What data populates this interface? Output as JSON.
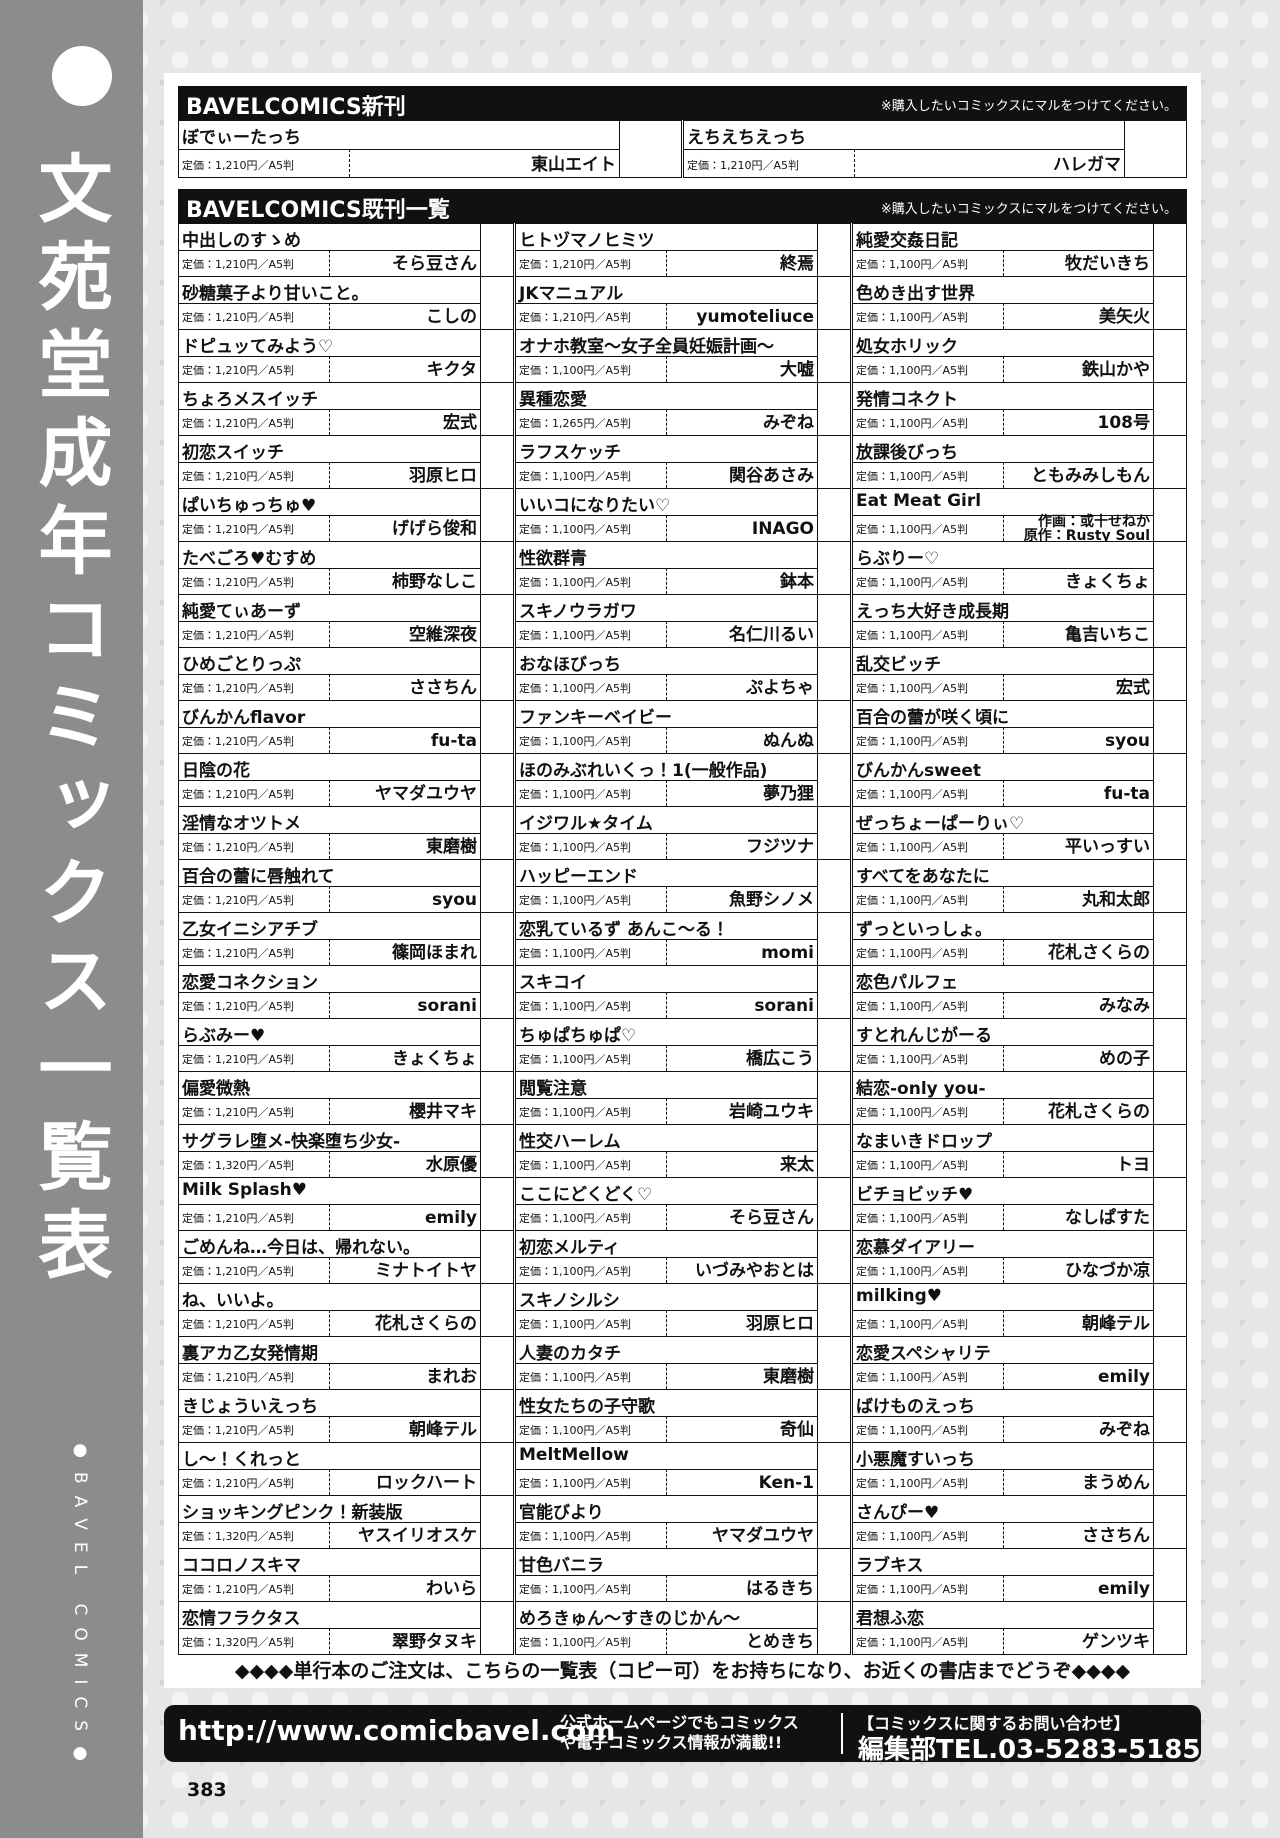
{
  "sidebar": {
    "title": "文苑堂成年コミックス一覧表",
    "subtitle": "●BAVEL COMICS●"
  },
  "new_releases": {
    "title": "BAVELCOMICS新刊",
    "note": "※購入したいコミックスにマルをつけてください。",
    "items": [
      {
        "title": "ぼでぃーたっち",
        "price": "定価：1,210円／A5判",
        "author": "東山エイト"
      },
      {
        "title": "えちえちえっち",
        "price": "定価：1,210円／A5判",
        "author": "ハレガマ"
      }
    ]
  },
  "backlist": {
    "title": "BAVELCOMICS既刊一覧",
    "note": "※購入したいコミックスにマルをつけてください。",
    "columns": [
      {
        "items": [
          {
            "title": "中出しのすゝめ",
            "price": "定価：1,210円／A5判",
            "author": "そら豆さん"
          },
          {
            "title": "砂糖菓子より甘いこと。",
            "price": "定価：1,210円／A5判",
            "author": "こしの"
          },
          {
            "title": "ドピュッてみよう♡",
            "price": "定価：1,210円／A5判",
            "author": "キクタ"
          },
          {
            "title": "ちょろメスイッチ",
            "price": "定価：1,210円／A5判",
            "author": "宏式"
          },
          {
            "title": "初恋スイッチ",
            "price": "定価：1,210円／A5判",
            "author": "羽原ヒロ"
          },
          {
            "title": "ぱいちゅっちゅ♥",
            "price": "定価：1,210円／A5判",
            "author": "げげら俊和"
          },
          {
            "title": "たべごろ♥むすめ",
            "price": "定価：1,210円／A5判",
            "author": "柿野なしこ"
          },
          {
            "title": "純愛てぃあーず",
            "price": "定価：1,210円／A5判",
            "author": "空維深夜"
          },
          {
            "title": "ひめごとりっぷ",
            "price": "定価：1,210円／A5判",
            "author": "ささちん"
          },
          {
            "title": "びんかんflavor",
            "price": "定価：1,210円／A5判",
            "author": "fu-ta"
          },
          {
            "title": "日陰の花",
            "price": "定価：1,210円／A5判",
            "author": "ヤマダユウヤ"
          },
          {
            "title": "淫情なオツトメ",
            "price": "定価：1,210円／A5判",
            "author": "東磨樹"
          },
          {
            "title": "百合の蕾に唇触れて",
            "price": "定価：1,210円／A5判",
            "author": "syou"
          },
          {
            "title": "乙女イニシアチブ",
            "price": "定価：1,210円／A5判",
            "author": "篠岡ほまれ"
          },
          {
            "title": "恋愛コネクション",
            "price": "定価：1,210円／A5判",
            "author": "sorani"
          },
          {
            "title": "らぶみー♥",
            "price": "定価：1,210円／A5判",
            "author": "きょくちょ"
          },
          {
            "title": "偏愛微熱",
            "price": "定価：1,210円／A5判",
            "author": "櫻井マキ"
          },
          {
            "title": "サグラレ堕メ-快楽堕ち少女-",
            "price": "定価：1,320円／A5判",
            "author": "水原優"
          },
          {
            "title": "Milk Splash♥",
            "price": "定価：1,210円／A5判",
            "author": "emily"
          },
          {
            "title": "ごめんね…今日は、帰れない。",
            "price": "定価：1,210円／A5判",
            "author": "ミナトイトヤ"
          },
          {
            "title": "ね、いいよ。",
            "price": "定価：1,210円／A5判",
            "author": "花札さくらの"
          },
          {
            "title": "裏アカ乙女発情期",
            "price": "定価：1,210円／A5判",
            "author": "まれお"
          },
          {
            "title": "きじょういえっち",
            "price": "定価：1,210円／A5判",
            "author": "朝峰テル"
          },
          {
            "title": "し～！くれっと",
            "price": "定価：1,210円／A5判",
            "author": "ロックハート"
          },
          {
            "title": "ショッキングピンク！新装版",
            "price": "定価：1,320円／A5判",
            "author": "ヤスイリオスケ"
          },
          {
            "title": "ココロノスキマ",
            "price": "定価：1,210円／A5判",
            "author": "わいら"
          },
          {
            "title": "恋情フラクタス",
            "price": "定価：1,320円／A5判",
            "author": "翠野タヌキ"
          }
        ]
      },
      {
        "items": [
          {
            "title": "ヒトヅマノヒミツ",
            "price": "定価：1,210円／A5判",
            "author": "終焉"
          },
          {
            "title": "JKマニュアル",
            "price": "定価：1,210円／A5判",
            "author": "yumoteliuce"
          },
          {
            "title": "オナホ教室～女子全員妊娠計画～",
            "price": "定価：1,100円／A5判",
            "author": "大嘘"
          },
          {
            "title": "異種恋愛",
            "price": "定価：1,265円／A5判",
            "author": "みぞね"
          },
          {
            "title": "ラフスケッチ",
            "price": "定価：1,100円／A5判",
            "author": "関谷あさみ"
          },
          {
            "title": "いいコになりたい♡",
            "price": "定価：1,100円／A5判",
            "author": "INAGO"
          },
          {
            "title": "性欲群青",
            "price": "定価：1,100円／A5判",
            "author": "鉢本"
          },
          {
            "title": "スキノウラガワ",
            "price": "定価：1,100円／A5判",
            "author": "名仁川るい"
          },
          {
            "title": "おなほびっち",
            "price": "定価：1,100円／A5判",
            "author": "ぷよちゃ"
          },
          {
            "title": "ファンキーベイビー",
            "price": "定価：1,100円／A5判",
            "author": "ぬんぬ"
          },
          {
            "title": "ほのみぶれいくっ！1(一般作品)",
            "price": "定価：1,100円／A5判",
            "author": "夢乃狸"
          },
          {
            "title": "イジワル★タイム",
            "price": "定価：1,100円／A5判",
            "author": "フジツナ"
          },
          {
            "title": "ハッピーエンド",
            "price": "定価：1,100円／A5判",
            "author": "魚野シノメ"
          },
          {
            "title": "恋乳ているず あんこ～る！",
            "price": "定価：1,100円／A5判",
            "author": "momi"
          },
          {
            "title": "スキコイ",
            "price": "定価：1,100円／A5判",
            "author": "sorani"
          },
          {
            "title": "ちゅぱちゅぱ♡",
            "price": "定価：1,100円／A5判",
            "author": "橋広こう"
          },
          {
            "title": "閲覧注意",
            "price": "定価：1,100円／A5判",
            "author": "岩崎ユウキ"
          },
          {
            "title": "性交ハーレム",
            "price": "定価：1,100円／A5判",
            "author": "来太"
          },
          {
            "title": "ここにどくどく♡",
            "price": "定価：1,100円／A5判",
            "author": "そら豆さん"
          },
          {
            "title": "初恋メルティ",
            "price": "定価：1,100円／A5判",
            "author": "いづみやおとは"
          },
          {
            "title": "スキノシルシ",
            "price": "定価：1,100円／A5判",
            "author": "羽原ヒロ"
          },
          {
            "title": "人妻のカタチ",
            "price": "定価：1,100円／A5判",
            "author": "東磨樹"
          },
          {
            "title": "性女たちの子守歌",
            "price": "定価：1,100円／A5判",
            "author": "奇仙"
          },
          {
            "title": "MeltMellow",
            "price": "定価：1,100円／A5判",
            "author": "Ken-1"
          },
          {
            "title": "官能びより",
            "price": "定価：1,100円／A5判",
            "author": "ヤマダユウヤ"
          },
          {
            "title": "甘色バニラ",
            "price": "定価：1,100円／A5判",
            "author": "はるきち"
          },
          {
            "title": "めろきゅん～すきのじかん～",
            "price": "定価：1,100円／A5判",
            "author": "とめきち"
          }
        ]
      },
      {
        "items": [
          {
            "title": "純愛交姦日記",
            "price": "定価：1,100円／A5判",
            "author": "牧だいきち"
          },
          {
            "title": "色めき出す世界",
            "price": "定価：1,100円／A5判",
            "author": "美矢火"
          },
          {
            "title": "処女ホリック",
            "price": "定価：1,100円／A5判",
            "author": "鉄山かや"
          },
          {
            "title": "発情コネクト",
            "price": "定価：1,100円／A5判",
            "author": "108号"
          },
          {
            "title": "放課後びっち",
            "price": "定価：1,100円／A5判",
            "author": "ともみみしもん"
          },
          {
            "title": "Eat Meat Girl",
            "price": "定価：1,100円／A5判",
            "author": [
              "作画：或十せねか",
              "原作：Rusty Soul"
            ]
          },
          {
            "title": "らぶりー♡",
            "price": "定価：1,100円／A5判",
            "author": "きょくちょ"
          },
          {
            "title": "えっち大好き成長期",
            "price": "定価：1,100円／A5判",
            "author": "亀吉いちこ"
          },
          {
            "title": "乱交ビッチ",
            "price": "定価：1,100円／A5判",
            "author": "宏式"
          },
          {
            "title": "百合の蕾が咲く頃に",
            "price": "定価：1,100円／A5判",
            "author": "syou"
          },
          {
            "title": "びんかんsweet",
            "price": "定価：1,100円／A5判",
            "author": "fu-ta"
          },
          {
            "title": "ぜっちょーぱーりぃ♡",
            "price": "定価：1,100円／A5判",
            "author": "平いっすい"
          },
          {
            "title": "すべてをあなたに",
            "price": "定価：1,100円／A5判",
            "author": "丸和太郎"
          },
          {
            "title": "ずっといっしょ。",
            "price": "定価：1,100円／A5判",
            "author": "花札さくらの"
          },
          {
            "title": "恋色パルフェ",
            "price": "定価：1,100円／A5判",
            "author": "みなみ"
          },
          {
            "title": "すとれんじがーる",
            "price": "定価：1,100円／A5判",
            "author": "めの子"
          },
          {
            "title": "結恋-only you-",
            "price": "定価：1,100円／A5判",
            "author": "花札さくらの"
          },
          {
            "title": "なまいきドロップ",
            "price": "定価：1,100円／A5判",
            "author": "トヨ"
          },
          {
            "title": "ビチョビッチ♥",
            "price": "定価：1,100円／A5判",
            "author": "なしぱすた"
          },
          {
            "title": "恋慕ダイアリー",
            "price": "定価：1,100円／A5判",
            "author": "ひなづか凉"
          },
          {
            "title": "milking♥",
            "price": "定価：1,100円／A5判",
            "author": "朝峰テル"
          },
          {
            "title": "恋愛スペシャリテ",
            "price": "定価：1,100円／A5判",
            "author": "emily"
          },
          {
            "title": "ばけものえっち",
            "price": "定価：1,100円／A5判",
            "author": "みぞね"
          },
          {
            "title": "小悪魔すいっち",
            "price": "定価：1,100円／A5判",
            "author": "まうめん"
          },
          {
            "title": "さんぴー♥",
            "price": "定価：1,100円／A5判",
            "author": "ささちん"
          },
          {
            "title": "ラブキス",
            "price": "定価：1,100円／A5判",
            "author": "emily"
          },
          {
            "title": "君想ふ恋",
            "price": "定価：1,100円／A5判",
            "author": "ゲンツキ"
          }
        ]
      }
    ]
  },
  "footer": {
    "note": "◆◆◆◆単行本のご注文は、こちらの一覧表（コピー可）をお持ちになり、お近くの書店までどうぞ◆◆◆◆",
    "url": "http://www.comicbavel.com",
    "info_lines": [
      "公式ホームページでもコミックス",
      "や電子コミックス情報が満載!!"
    ],
    "contact_title": "【コミックスに関するお問い合わせ】",
    "contact_tel": "編集部TEL.03-5283-5185",
    "page_number": "383"
  }
}
